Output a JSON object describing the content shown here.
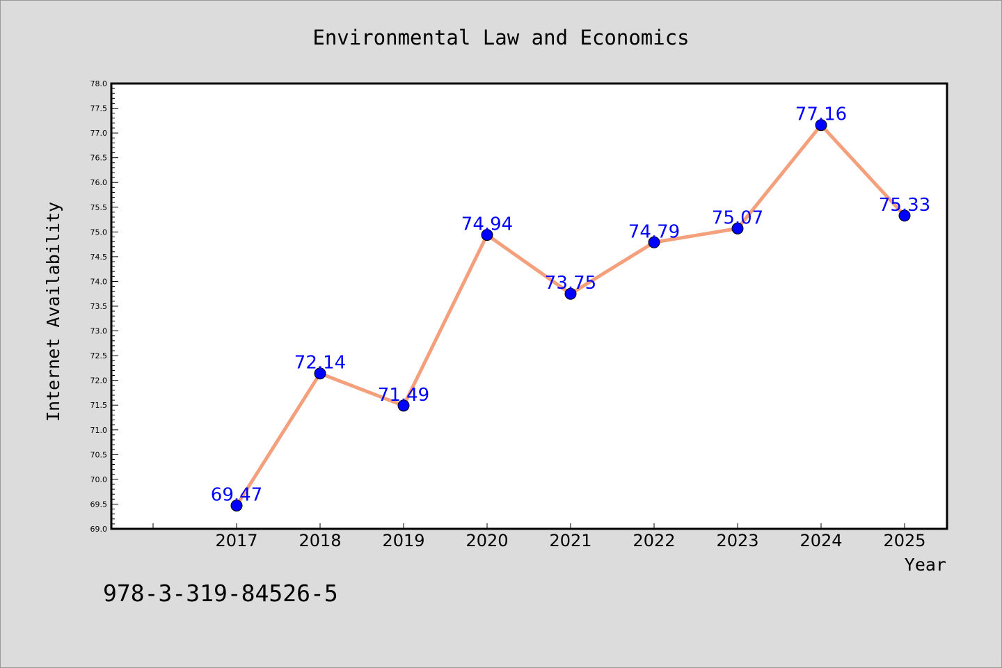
{
  "chart_data": {
    "type": "line",
    "title": "Environmental Law and Economics",
    "xlabel": "Year",
    "ylabel": "Internet Availability",
    "categories": [
      "2017",
      "2018",
      "2019",
      "2020",
      "2021",
      "2022",
      "2023",
      "2024",
      "2025"
    ],
    "values": [
      69.47,
      72.14,
      71.49,
      74.94,
      73.75,
      74.79,
      75.07,
      77.16,
      75.33
    ],
    "data_labels": [
      "69.47",
      "72.14",
      "71.49",
      "74.94",
      "73.75",
      "74.79",
      "75.07",
      "77.16",
      "75.33"
    ],
    "ylim": [
      69.0,
      78.0
    ],
    "yticks": [
      "69.0",
      "69.5",
      "70.0",
      "70.5",
      "71.0",
      "71.5",
      "72.0",
      "72.5",
      "73.0",
      "73.5",
      "74.0",
      "74.5",
      "75.0",
      "75.5",
      "76.0",
      "76.5",
      "77.0",
      "77.5",
      "78.0"
    ],
    "grid": false,
    "legend": "none",
    "colors": {
      "line": "#f4a07c",
      "marker": "#0000ff",
      "label": "#0000ff",
      "plot_bg": "#ffffff",
      "page_bg": "#dcdcdc"
    }
  },
  "footer": {
    "isbn": "978-3-319-84526-5"
  }
}
